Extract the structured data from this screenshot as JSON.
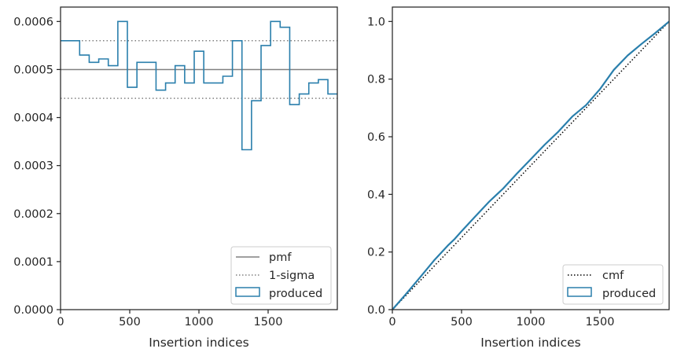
{
  "colors": {
    "produced": "#2a7fac",
    "pmf": "#808080",
    "sigma": "#808080",
    "cmf": "#000000",
    "axis": "#262626"
  },
  "chart_data": [
    {
      "type": "line",
      "style": "step",
      "xlabel": "Insertion indices",
      "ylabel": "",
      "xlim": [
        0,
        2000
      ],
      "ylim": [
        0,
        0.00063
      ],
      "xticks": [
        0,
        500,
        1000,
        1500
      ],
      "xtick_labels": [
        "0",
        "500",
        "1000",
        "1500"
      ],
      "yticks": [
        0,
        0.0001,
        0.0002,
        0.0003,
        0.0004,
        0.0005,
        0.0006
      ],
      "ytick_labels": [
        "0.0000",
        "0.0001",
        "0.0002",
        "0.0003",
        "0.0004",
        "0.0005",
        "0.0006"
      ],
      "grid": false,
      "legend": {
        "placement": "bottom-right",
        "entries": [
          {
            "label": "pmf",
            "kind": "line-solid"
          },
          {
            "label": "1-sigma",
            "kind": "line-dotted"
          },
          {
            "label": "produced",
            "kind": "box"
          }
        ]
      },
      "reference_lines": {
        "pmf": 0.0005,
        "sigma_upper": 0.00056,
        "sigma_lower": 0.00044
      },
      "series": [
        {
          "name": "produced",
          "bin_edges": [
            0,
            138,
            207,
            276,
            345,
            414,
            483,
            552,
            621,
            690,
            759,
            828,
            897,
            966,
            1035,
            1104,
            1173,
            1242,
            1311,
            1380,
            1449,
            1518,
            1587,
            1656,
            1725,
            1794,
            1863,
            1932,
            2000
          ],
          "values": [
            0.00056,
            0.00053,
            0.000515,
            0.000522,
            0.000508,
            0.0006,
            0.000463,
            0.000515,
            0.000515,
            0.000457,
            0.000472,
            0.000508,
            0.000472,
            0.000538,
            0.000472,
            0.000472,
            0.000486,
            0.00056,
            0.000333,
            0.000435,
            0.00055,
            0.0006,
            0.000588,
            0.000427,
            0.000449,
            0.000472,
            0.000479,
            0.000449
          ]
        }
      ]
    },
    {
      "type": "line",
      "xlabel": "Insertion indices",
      "ylabel": "",
      "xlim": [
        0,
        2000
      ],
      "ylim": [
        0,
        1.05
      ],
      "xticks": [
        0,
        500,
        1000,
        1500
      ],
      "xtick_labels": [
        "0",
        "500",
        "1000",
        "1500"
      ],
      "yticks": [
        0,
        0.2,
        0.4,
        0.6,
        0.8,
        1.0
      ],
      "ytick_labels": [
        "0.0",
        "0.2",
        "0.4",
        "0.6",
        "0.8",
        "1.0"
      ],
      "grid": false,
      "legend": {
        "placement": "bottom-right",
        "entries": [
          {
            "label": "cmf",
            "kind": "line-dotted"
          },
          {
            "label": "produced",
            "kind": "box"
          }
        ]
      },
      "series": [
        {
          "name": "cmf",
          "x": [
            0,
            2000
          ],
          "y": [
            0,
            1.0
          ]
        },
        {
          "name": "produced",
          "x": [
            0,
            100,
            200,
            300,
            400,
            450,
            500,
            600,
            700,
            800,
            900,
            1000,
            1100,
            1200,
            1300,
            1400,
            1500,
            1600,
            1700,
            1800,
            1900,
            2000
          ],
          "y": [
            0,
            0.055,
            0.112,
            0.17,
            0.222,
            0.245,
            0.272,
            0.324,
            0.375,
            0.42,
            0.472,
            0.522,
            0.572,
            0.618,
            0.67,
            0.71,
            0.765,
            0.832,
            0.882,
            0.922,
            0.96,
            1.0
          ]
        }
      ]
    }
  ]
}
